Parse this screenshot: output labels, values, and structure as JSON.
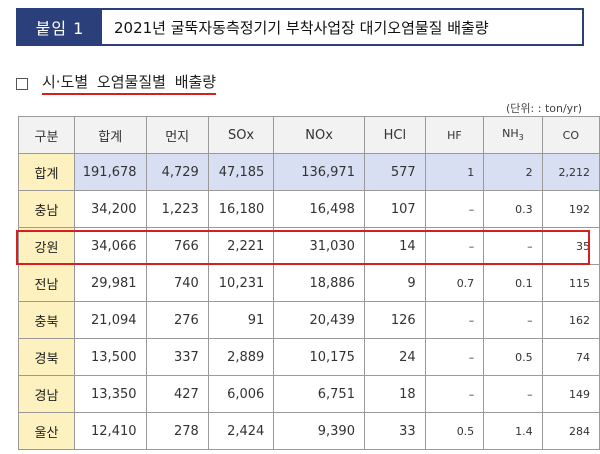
{
  "header": {
    "tag": "붙임 1",
    "title": "2021년 굴뚝자동측정기기 부착사업장 대기오염물질 배출량"
  },
  "section": {
    "label": "시·도별 오염물질별 배출량"
  },
  "unit_note": "(단위: : ton/yr)",
  "table": {
    "columns": [
      "구분",
      "합계",
      "먼지",
      "SOx",
      "NOx",
      "HCl",
      "HF",
      "NH3",
      "CO"
    ],
    "rows": [
      {
        "region": "합계",
        "cells": [
          "191,678",
          "4,729",
          "47,185",
          "136,971",
          "577",
          "1",
          "2",
          "2,212"
        ]
      },
      {
        "region": "충남",
        "cells": [
          "34,200",
          "1,223",
          "16,180",
          "16,498",
          "107",
          "–",
          "0.3",
          "192"
        ]
      },
      {
        "region": "강원",
        "cells": [
          "34,066",
          "766",
          "2,221",
          "31,030",
          "14",
          "–",
          "–",
          "35"
        ]
      },
      {
        "region": "전남",
        "cells": [
          "29,981",
          "740",
          "10,231",
          "18,886",
          "9",
          "0.7",
          "0.1",
          "115"
        ]
      },
      {
        "region": "충북",
        "cells": [
          "21,094",
          "276",
          "91",
          "20,439",
          "126",
          "–",
          "–",
          "162"
        ]
      },
      {
        "region": "경북",
        "cells": [
          "13,500",
          "337",
          "2,889",
          "10,175",
          "24",
          "–",
          "0.5",
          "74"
        ]
      },
      {
        "region": "경남",
        "cells": [
          "13,350",
          "427",
          "6,006",
          "6,751",
          "18",
          "–",
          "–",
          "149"
        ]
      },
      {
        "region": "울산",
        "cells": [
          "12,410",
          "278",
          "2,424",
          "9,390",
          "33",
          "0.5",
          "1.4",
          "284"
        ]
      }
    ]
  },
  "highlight_row": "강원",
  "colors": {
    "header_navy": "#2b3f7a",
    "highlight_red": "#d42020",
    "region_fill": "#fdf1c0",
    "total_fill": "#d8dff2"
  }
}
